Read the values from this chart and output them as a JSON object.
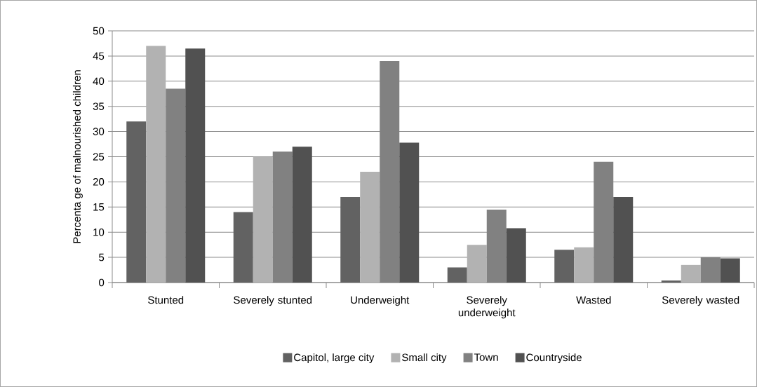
{
  "chart_data": {
    "type": "bar",
    "ylabel": "Percenta ge of malnourished children",
    "categories": [
      "Stunted",
      "Severely stunted",
      "Underweight",
      "Severely underweight",
      "Wasted",
      "Severely wasted"
    ],
    "series": [
      {
        "name": "Capitol, large city",
        "color": "#626262",
        "values": [
          32,
          14,
          17,
          3,
          6.5,
          0.4
        ]
      },
      {
        "name": "Small city",
        "color": "#b2b2b2",
        "values": [
          47,
          25,
          22,
          7.5,
          7,
          3.5
        ]
      },
      {
        "name": "Town",
        "color": "#818181",
        "values": [
          38.5,
          26,
          44,
          14.5,
          24,
          5
        ]
      },
      {
        "name": "Countryside",
        "color": "#515151",
        "values": [
          46.5,
          27,
          27.8,
          10.8,
          17,
          4.8
        ]
      }
    ],
    "ylim": [
      0,
      50
    ],
    "yticks": [
      0,
      5,
      10,
      15,
      20,
      25,
      30,
      35,
      40,
      45,
      50
    ],
    "grid": "y",
    "legend": "bottom"
  }
}
